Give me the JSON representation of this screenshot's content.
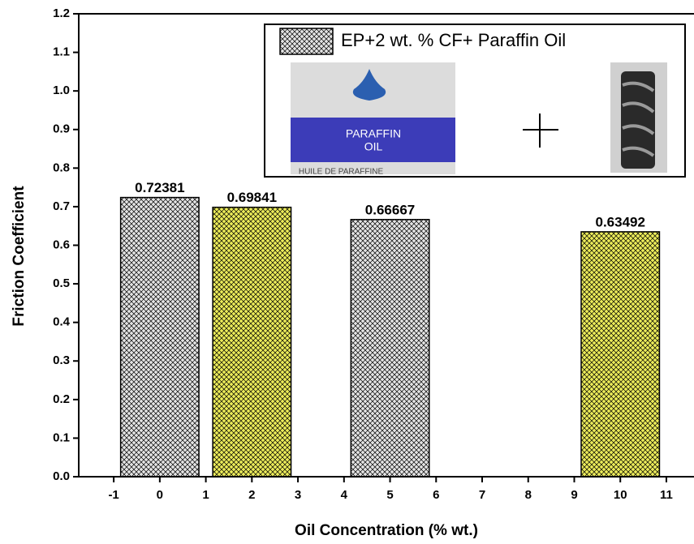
{
  "chart_data": {
    "type": "bar",
    "x_label": "Oil Concentration (% wt.)",
    "y_label": "Friction Coefficient",
    "x": [
      0,
      2,
      5,
      10
    ],
    "values": [
      0.72381,
      0.69841,
      0.66667,
      0.63492
    ],
    "colors": [
      "#e4e4e4",
      "#ecec5a",
      "#e4e4e4",
      "#ecec5a"
    ],
    "bar_width": 1.7,
    "hatch": "crosshatch",
    "xlim": [
      -1.76,
      11.6
    ],
    "ylim": [
      0,
      1.2
    ],
    "xticks": [
      -1,
      0,
      1,
      2,
      3,
      4,
      5,
      6,
      7,
      8,
      9,
      10,
      11
    ],
    "yticks": [
      {
        "value": 0,
        "label": "0.0"
      },
      0.1,
      0.2,
      0.3,
      0.4,
      0.5,
      0.6,
      0.7,
      0.8,
      0.9,
      {
        "value": 1,
        "label": "1.0"
      },
      1.1,
      1.2
    ],
    "legend": {
      "label": "EP+2 wt. % CF+ Paraffin Oil",
      "color": "#e4e4e4"
    }
  },
  "inset": {
    "bottle_text": [
      "PARAFFIN",
      "OIL"
    ],
    "bottle_caption": "HUILE DE PARAFFINE"
  }
}
